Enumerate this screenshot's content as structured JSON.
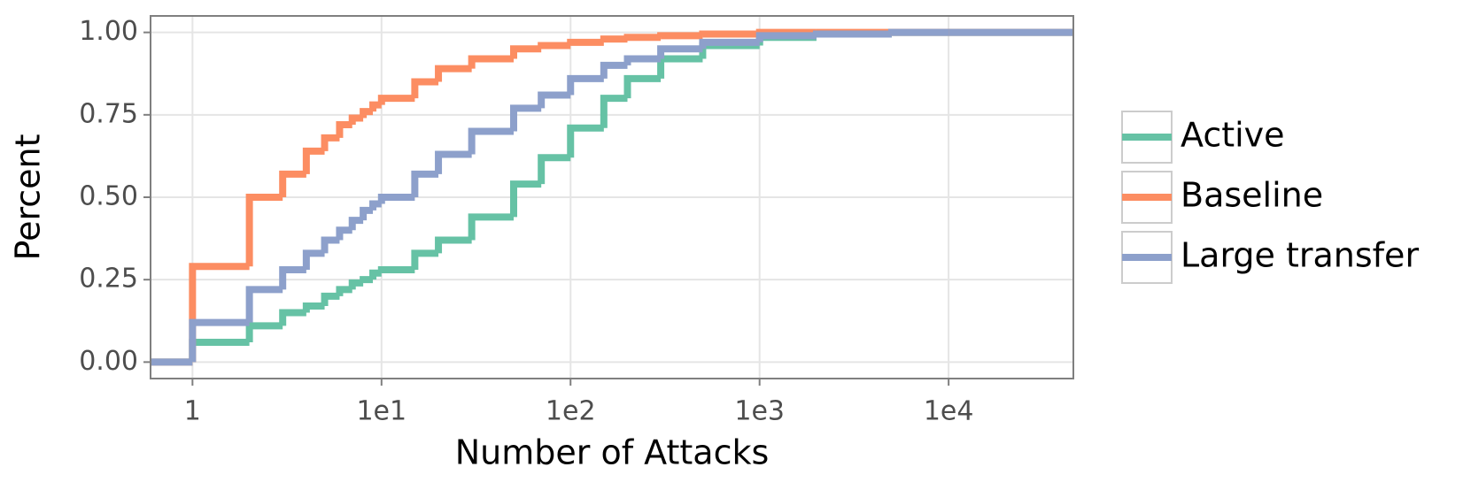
{
  "chart_data": {
    "type": "step",
    "xlabel": "Number of Attacks",
    "ylabel": "Percent",
    "log_x": true,
    "grid": true,
    "legend": "right",
    "x": [
      0.6,
      1,
      2,
      3,
      4,
      5,
      6,
      7,
      8,
      9,
      10,
      15,
      20,
      30,
      50,
      70,
      100,
      150,
      200,
      300,
      500,
      1000,
      2000,
      5000,
      10000,
      45700
    ],
    "series": [
      {
        "name": "Active",
        "color": "#66c2a5",
        "values": [
          0,
          0.06,
          0.11,
          0.15,
          0.17,
          0.2,
          0.22,
          0.24,
          0.25,
          0.27,
          0.28,
          0.33,
          0.37,
          0.44,
          0.54,
          0.62,
          0.71,
          0.8,
          0.86,
          0.92,
          0.96,
          0.985,
          0.995,
          1,
          1,
          1
        ]
      },
      {
        "name": "Baseline",
        "color": "#fc8d62",
        "values": [
          0,
          0.29,
          0.5,
          0.57,
          0.64,
          0.68,
          0.72,
          0.74,
          0.76,
          0.78,
          0.8,
          0.85,
          0.89,
          0.92,
          0.95,
          0.96,
          0.97,
          0.98,
          0.985,
          0.99,
          0.995,
          1,
          1,
          1,
          1,
          1
        ]
      },
      {
        "name": "Large transfer",
        "color": "#8da0cb",
        "values": [
          0,
          0.12,
          0.22,
          0.28,
          0.33,
          0.37,
          0.4,
          0.43,
          0.46,
          0.48,
          0.5,
          0.57,
          0.63,
          0.7,
          0.77,
          0.81,
          0.86,
          0.9,
          0.92,
          0.95,
          0.97,
          0.99,
          0.995,
          1,
          1,
          1
        ]
      }
    ],
    "xlim": [
      0.6,
      45700
    ],
    "xticks": [
      1,
      {
        "value": 10,
        "label": "1e1"
      },
      {
        "value": 100,
        "label": "1e2"
      },
      {
        "value": 1000,
        "label": "1e3"
      },
      {
        "value": 10000,
        "label": "1e4"
      }
    ],
    "ylim": [
      -0.05,
      1.05
    ],
    "yticks": [
      {
        "value": 0,
        "label": "0.00"
      },
      {
        "value": 0.25,
        "label": "0.25"
      },
      {
        "value": 0.5,
        "label": "0.50"
      },
      {
        "value": 0.75,
        "label": "0.75"
      },
      {
        "value": 1,
        "label": "1.00"
      }
    ]
  }
}
